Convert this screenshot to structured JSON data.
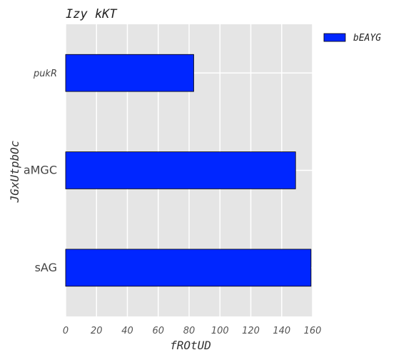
{
  "chart_data": {
    "type": "bar",
    "orientation": "horizontal",
    "title": "Izy kKT",
    "xlabel": "fROtUD",
    "ylabel": "JGxUtpbOc",
    "categories": [
      "sAG",
      "aMGC",
      "pukR"
    ],
    "series": [
      {
        "name": "bEAYG",
        "values": [
          159,
          149,
          83
        ],
        "color": "#0026ff"
      }
    ],
    "xlim": [
      0,
      160
    ],
    "xticks": [
      0,
      20,
      40,
      60,
      80,
      100,
      120,
      140,
      160
    ],
    "grid": true,
    "legend": "top-right, outside plot",
    "background": "#e5e5e5"
  }
}
